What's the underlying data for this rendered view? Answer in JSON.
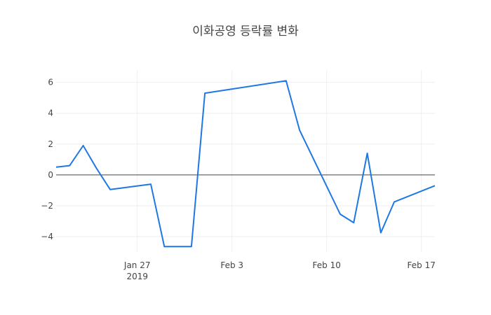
{
  "chart_data": {
    "type": "line",
    "title": "이화공영 등락률 변화",
    "x_tick_labels": [
      {
        "date": "2019-01-27",
        "label": "Jan 27",
        "sublabel": "2019"
      },
      {
        "date": "2019-02-03",
        "label": "Feb 3",
        "sublabel": ""
      },
      {
        "date": "2019-02-10",
        "label": "Feb 10",
        "sublabel": ""
      },
      {
        "date": "2019-02-17",
        "label": "Feb 17",
        "sublabel": ""
      }
    ],
    "y_ticks": [
      6,
      4,
      2,
      0,
      -2,
      -4
    ],
    "y_tick_labels": [
      "6",
      "4",
      "2",
      "0",
      "−2",
      "−4"
    ],
    "xlim": [
      "2019-01-21",
      "2019-02-18"
    ],
    "ylim": [
      -5.0,
      6.8
    ],
    "grid": true,
    "zero_line": true,
    "series_color": "#1f77e4",
    "x": [
      "2019-01-21",
      "2019-01-22",
      "2019-01-23",
      "2019-01-24",
      "2019-01-25",
      "2019-01-28",
      "2019-01-29",
      "2019-01-30",
      "2019-01-31",
      "2019-02-01",
      "2019-02-07",
      "2019-02-08",
      "2019-02-11",
      "2019-02-12",
      "2019-02-13",
      "2019-02-14",
      "2019-02-15",
      "2019-02-18"
    ],
    "values": [
      0.5,
      0.6,
      1.9,
      0.4,
      -0.95,
      -0.6,
      -4.65,
      -4.65,
      -4.65,
      5.3,
      6.1,
      2.9,
      -2.55,
      -3.1,
      1.4,
      -3.75,
      -1.75,
      -0.7
    ]
  }
}
